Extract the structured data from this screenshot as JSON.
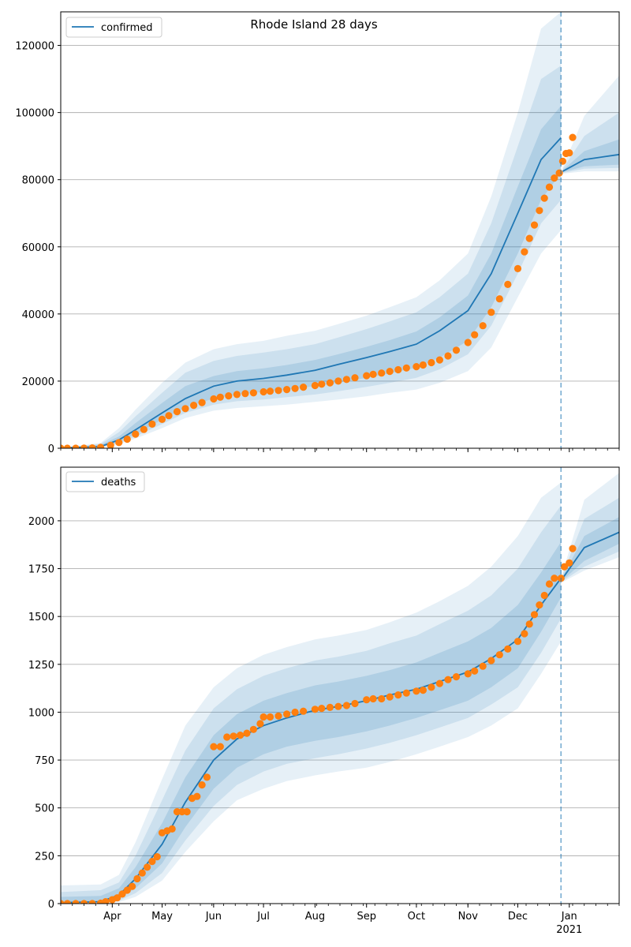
{
  "chart_data": [
    {
      "type": "line",
      "title": "Rhode Island 28 days",
      "legend": {
        "label": "confirmed",
        "placement": "top-left"
      },
      "ylim": [
        0,
        130000
      ],
      "yticks": [
        0,
        20000,
        40000,
        60000,
        80000,
        100000,
        120000
      ],
      "ytick_labels": [
        "0",
        "20000",
        "40000",
        "60000",
        "80000",
        "100000",
        "120000"
      ],
      "grid": "horizontal",
      "cutoff_date": "2020-12-27",
      "colors": {
        "model": "#1f77b4",
        "observed": "#ff7f0e"
      },
      "model": [
        [
          "2020-03-01",
          100,
          100,
          100,
          100,
          100,
          100,
          100
        ],
        [
          "2020-03-25",
          500,
          350,
          280,
          200,
          1000,
          1300,
          1600
        ],
        [
          "2020-04-05",
          2500,
          1800,
          1500,
          1200,
          3500,
          4800,
          6000
        ],
        [
          "2020-04-15",
          5500,
          4200,
          3500,
          2900,
          7500,
          9500,
          11500
        ],
        [
          "2020-05-01",
          10500,
          8500,
          7200,
          6000,
          13500,
          16500,
          19500
        ],
        [
          "2020-05-15",
          14800,
          12200,
          10500,
          9000,
          18500,
          22500,
          25500
        ],
        [
          "2020-06-01",
          18500,
          14800,
          13000,
          11200,
          21500,
          26000,
          29500
        ],
        [
          "2020-06-15",
          20000,
          16000,
          14000,
          12000,
          23000,
          27500,
          31000
        ],
        [
          "2020-07-01",
          20800,
          16800,
          14500,
          12500,
          23800,
          28500,
          32000
        ],
        [
          "2020-07-15",
          21800,
          17500,
          15200,
          13000,
          24800,
          29500,
          33500
        ],
        [
          "2020-08-01",
          23200,
          18500,
          16000,
          13800,
          26300,
          31000,
          35000
        ],
        [
          "2020-08-15",
          25000,
          19500,
          17000,
          14500,
          28000,
          33000,
          37000
        ],
        [
          "2020-09-01",
          27000,
          21000,
          18300,
          15500,
          30200,
          35500,
          39500
        ],
        [
          "2020-09-15",
          28800,
          22300,
          19500,
          16500,
          32200,
          37800,
          42000
        ],
        [
          "2020-10-01",
          31000,
          24000,
          21000,
          17500,
          34800,
          40500,
          45000
        ],
        [
          "2020-10-15",
          35000,
          27000,
          23500,
          19500,
          39000,
          45000,
          50000
        ],
        [
          "2020-11-01",
          41000,
          32000,
          28000,
          23000,
          45500,
          52000,
          58000
        ],
        [
          "2020-11-15",
          52000,
          42000,
          36500,
          30000,
          58000,
          67000,
          75000
        ],
        [
          "2020-12-01",
          70000,
          58000,
          52000,
          45000,
          78000,
          90000,
          100000
        ],
        [
          "2020-12-15",
          86000,
          74000,
          67000,
          58000,
          95000,
          110000,
          125000
        ],
        [
          "2020-12-27",
          92500,
          82000,
          74000,
          65000,
          102000,
          114000,
          130000
        ],
        [
          "2020-12-28",
          82500,
          82200,
          82000,
          81800,
          82800,
          83200,
          83600
        ],
        [
          "2021-01-10",
          86000,
          84000,
          83300,
          82500,
          88500,
          93000,
          99000
        ],
        [
          "2021-01-31",
          87500,
          84500,
          83500,
          82500,
          92000,
          100000,
          111000
        ]
      ],
      "observed": [
        [
          "2020-03-01",
          0
        ],
        [
          "2020-03-05",
          0
        ],
        [
          "2020-03-10",
          0
        ],
        [
          "2020-03-15",
          20
        ],
        [
          "2020-03-20",
          100
        ],
        [
          "2020-03-25",
          250
        ],
        [
          "2020-03-31",
          900
        ],
        [
          "2020-04-05",
          1700
        ],
        [
          "2020-04-10",
          2700
        ],
        [
          "2020-04-15",
          4200
        ],
        [
          "2020-04-20",
          5600
        ],
        [
          "2020-04-25",
          7200
        ],
        [
          "2020-05-01",
          8600
        ],
        [
          "2020-05-05",
          9700
        ],
        [
          "2020-05-10",
          10900
        ],
        [
          "2020-05-15",
          11800
        ],
        [
          "2020-05-20",
          12800
        ],
        [
          "2020-05-25",
          13600
        ],
        [
          "2020-06-01",
          14700
        ],
        [
          "2020-06-05",
          15200
        ],
        [
          "2020-06-10",
          15600
        ],
        [
          "2020-06-15",
          16000
        ],
        [
          "2020-06-20",
          16300
        ],
        [
          "2020-06-25",
          16500
        ],
        [
          "2020-07-01",
          16800
        ],
        [
          "2020-07-05",
          17000
        ],
        [
          "2020-07-10",
          17200
        ],
        [
          "2020-07-15",
          17500
        ],
        [
          "2020-07-20",
          17800
        ],
        [
          "2020-07-25",
          18200
        ],
        [
          "2020-08-01",
          18700
        ],
        [
          "2020-08-05",
          19100
        ],
        [
          "2020-08-10",
          19500
        ],
        [
          "2020-08-15",
          20000
        ],
        [
          "2020-08-20",
          20500
        ],
        [
          "2020-08-25",
          21000
        ],
        [
          "2020-09-01",
          21600
        ],
        [
          "2020-09-05",
          22000
        ],
        [
          "2020-09-10",
          22400
        ],
        [
          "2020-09-15",
          22900
        ],
        [
          "2020-09-20",
          23400
        ],
        [
          "2020-09-25",
          23900
        ],
        [
          "2020-10-01",
          24300
        ],
        [
          "2020-10-05",
          24800
        ],
        [
          "2020-10-10",
          25500
        ],
        [
          "2020-10-15",
          26300
        ],
        [
          "2020-10-20",
          27500
        ],
        [
          "2020-10-25",
          29200
        ],
        [
          "2020-11-01",
          31500
        ],
        [
          "2020-11-05",
          33800
        ],
        [
          "2020-11-10",
          36500
        ],
        [
          "2020-11-15",
          40500
        ],
        [
          "2020-11-20",
          44500
        ],
        [
          "2020-11-25",
          48800
        ],
        [
          "2020-12-01",
          53500
        ],
        [
          "2020-12-05",
          58500
        ],
        [
          "2020-12-08",
          62500
        ],
        [
          "2020-12-11",
          66500
        ],
        [
          "2020-12-14",
          70800
        ],
        [
          "2020-12-17",
          74500
        ],
        [
          "2020-12-20",
          77800
        ],
        [
          "2020-12-23",
          80500
        ],
        [
          "2020-12-26",
          82000
        ],
        [
          "2020-12-28",
          85500
        ],
        [
          "2020-12-30",
          87800
        ],
        [
          "2021-01-01",
          88000
        ],
        [
          "2021-01-03",
          92600
        ]
      ]
    },
    {
      "type": "line",
      "title": "",
      "legend": {
        "label": "deaths",
        "placement": "top-left"
      },
      "ylim": [
        0,
        2280
      ],
      "yticks": [
        0,
        250,
        500,
        750,
        1000,
        1250,
        1500,
        1750,
        2000
      ],
      "ytick_labels": [
        "0",
        "250",
        "500",
        "750",
        "1000",
        "1250",
        "1500",
        "1750",
        "2000"
      ],
      "grid": "horizontal",
      "cutoff_date": "2020-12-27",
      "colors": {
        "model": "#1f77b4",
        "observed": "#ff7f0e"
      },
      "model": [
        [
          "2020-03-01",
          5,
          5,
          5,
          5,
          35,
          60,
          95
        ],
        [
          "2020-03-25",
          10,
          5,
          5,
          5,
          40,
          70,
          100
        ],
        [
          "2020-04-05",
          45,
          25,
          15,
          8,
          80,
          110,
          150
        ],
        [
          "2020-04-15",
          130,
          80,
          55,
          35,
          190,
          250,
          320
        ],
        [
          "2020-05-01",
          310,
          210,
          160,
          120,
          420,
          540,
          650
        ],
        [
          "2020-05-15",
          530,
          400,
          330,
          270,
          660,
          800,
          930
        ],
        [
          "2020-06-01",
          750,
          600,
          510,
          430,
          880,
          1020,
          1130
        ],
        [
          "2020-06-15",
          860,
          710,
          620,
          540,
          990,
          1120,
          1230
        ],
        [
          "2020-07-01",
          930,
          780,
          690,
          600,
          1060,
          1190,
          1300
        ],
        [
          "2020-07-15",
          970,
          820,
          730,
          640,
          1100,
          1230,
          1340
        ],
        [
          "2020-08-01",
          1010,
          850,
          760,
          670,
          1140,
          1270,
          1380
        ],
        [
          "2020-08-15",
          1030,
          870,
          780,
          690,
          1160,
          1290,
          1400
        ],
        [
          "2020-09-01",
          1060,
          900,
          810,
          710,
          1190,
          1320,
          1430
        ],
        [
          "2020-09-15",
          1090,
          930,
          840,
          740,
          1220,
          1360,
          1470
        ],
        [
          "2020-10-01",
          1120,
          970,
          880,
          780,
          1260,
          1400,
          1520
        ],
        [
          "2020-10-15",
          1160,
          1010,
          920,
          820,
          1310,
          1460,
          1580
        ],
        [
          "2020-11-01",
          1210,
          1060,
          970,
          870,
          1370,
          1530,
          1660
        ],
        [
          "2020-11-15",
          1280,
          1130,
          1040,
          930,
          1440,
          1610,
          1760
        ],
        [
          "2020-12-01",
          1380,
          1230,
          1130,
          1020,
          1560,
          1750,
          1920
        ],
        [
          "2020-12-15",
          1560,
          1420,
          1310,
          1200,
          1730,
          1940,
          2120
        ],
        [
          "2020-12-27",
          1700,
          1600,
          1490,
          1370,
          1890,
          2080,
          2200
        ],
        [
          "2020-12-28",
          1700,
          1690,
          1685,
          1680,
          1710,
          1720,
          1730
        ],
        [
          "2021-01-10",
          1860,
          1790,
          1760,
          1740,
          1920,
          2010,
          2110
        ],
        [
          "2021-01-31",
          1940,
          1880,
          1840,
          1810,
          2020,
          2120,
          2250
        ]
      ],
      "observed": [
        [
          "2020-03-01",
          0
        ],
        [
          "2020-03-05",
          0
        ],
        [
          "2020-03-10",
          0
        ],
        [
          "2020-03-15",
          0
        ],
        [
          "2020-03-20",
          0
        ],
        [
          "2020-03-25",
          2
        ],
        [
          "2020-03-28",
          10
        ],
        [
          "2020-04-01",
          20
        ],
        [
          "2020-04-04",
          30
        ],
        [
          "2020-04-07",
          50
        ],
        [
          "2020-04-10",
          70
        ],
        [
          "2020-04-13",
          90
        ],
        [
          "2020-04-16",
          130
        ],
        [
          "2020-04-19",
          160
        ],
        [
          "2020-04-22",
          190
        ],
        [
          "2020-04-25",
          220
        ],
        [
          "2020-04-28",
          245
        ],
        [
          "2020-05-01",
          370
        ],
        [
          "2020-05-04",
          380
        ],
        [
          "2020-05-07",
          390
        ],
        [
          "2020-05-10",
          480
        ],
        [
          "2020-05-13",
          480
        ],
        [
          "2020-05-16",
          480
        ],
        [
          "2020-05-19",
          550
        ],
        [
          "2020-05-22",
          560
        ],
        [
          "2020-05-25",
          620
        ],
        [
          "2020-05-28",
          660
        ],
        [
          "2020-06-01",
          820
        ],
        [
          "2020-06-05",
          820
        ],
        [
          "2020-06-09",
          870
        ],
        [
          "2020-06-13",
          875
        ],
        [
          "2020-06-17",
          880
        ],
        [
          "2020-06-21",
          890
        ],
        [
          "2020-06-25",
          910
        ],
        [
          "2020-06-29",
          940
        ],
        [
          "2020-07-01",
          975
        ],
        [
          "2020-07-05",
          975
        ],
        [
          "2020-07-10",
          980
        ],
        [
          "2020-07-15",
          990
        ],
        [
          "2020-07-20",
          1000
        ],
        [
          "2020-07-25",
          1005
        ],
        [
          "2020-08-01",
          1015
        ],
        [
          "2020-08-05",
          1020
        ],
        [
          "2020-08-10",
          1025
        ],
        [
          "2020-08-15",
          1030
        ],
        [
          "2020-08-20",
          1035
        ],
        [
          "2020-08-25",
          1045
        ],
        [
          "2020-09-01",
          1065
        ],
        [
          "2020-09-05",
          1070
        ],
        [
          "2020-09-10",
          1070
        ],
        [
          "2020-09-15",
          1080
        ],
        [
          "2020-09-20",
          1090
        ],
        [
          "2020-09-25",
          1100
        ],
        [
          "2020-10-01",
          1110
        ],
        [
          "2020-10-05",
          1115
        ],
        [
          "2020-10-10",
          1130
        ],
        [
          "2020-10-15",
          1150
        ],
        [
          "2020-10-20",
          1170
        ],
        [
          "2020-10-25",
          1185
        ],
        [
          "2020-11-01",
          1200
        ],
        [
          "2020-11-05",
          1215
        ],
        [
          "2020-11-10",
          1240
        ],
        [
          "2020-11-15",
          1270
        ],
        [
          "2020-11-20",
          1300
        ],
        [
          "2020-11-25",
          1330
        ],
        [
          "2020-12-01",
          1370
        ],
        [
          "2020-12-05",
          1410
        ],
        [
          "2020-12-08",
          1460
        ],
        [
          "2020-12-11",
          1510
        ],
        [
          "2020-12-14",
          1560
        ],
        [
          "2020-12-17",
          1610
        ],
        [
          "2020-12-20",
          1670
        ],
        [
          "2020-12-23",
          1700
        ],
        [
          "2020-12-27",
          1700
        ],
        [
          "2020-12-29",
          1760
        ],
        [
          "2021-01-01",
          1780
        ],
        [
          "2021-01-03",
          1855
        ]
      ]
    }
  ],
  "x_axis": {
    "start": "2020-03-01",
    "end": "2021-01-31",
    "ticks": [
      {
        "date": "2020-04-01",
        "label": "Apr"
      },
      {
        "date": "2020-05-01",
        "label": "May"
      },
      {
        "date": "2020-06-01",
        "label": "Jun"
      },
      {
        "date": "2020-07-01",
        "label": "Jul"
      },
      {
        "date": "2020-08-01",
        "label": "Aug"
      },
      {
        "date": "2020-09-01",
        "label": "Sep"
      },
      {
        "date": "2020-10-01",
        "label": "Oct"
      },
      {
        "date": "2020-11-01",
        "label": "Nov"
      },
      {
        "date": "2020-12-01",
        "label": "Dec"
      },
      {
        "date": "2021-01-01",
        "label": "Jan"
      }
    ],
    "year_label": {
      "date": "2021-01-01",
      "label": "2021"
    }
  }
}
